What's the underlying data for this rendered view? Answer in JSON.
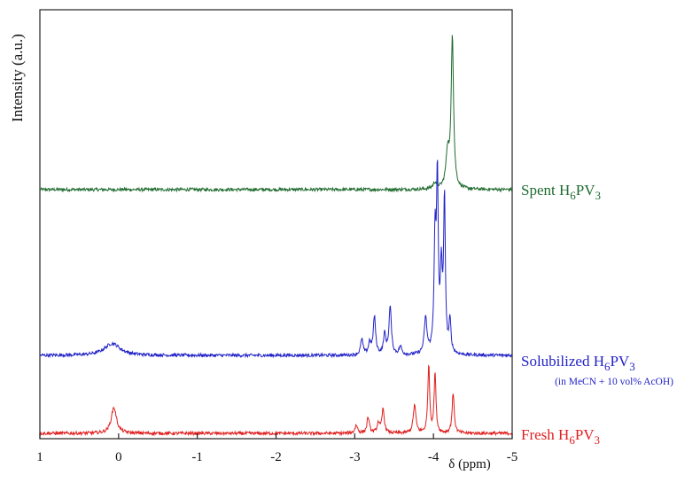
{
  "chart_data": {
    "type": "line",
    "title": "",
    "xlabel": "δ (ppm)",
    "ylabel": "Intensity (a.u.)",
    "xlim": [
      1,
      -5
    ],
    "x_reversed": true,
    "ylim": [
      0,
      1
    ],
    "y_ticks_shown": false,
    "grid": false,
    "x_ticks": [
      1,
      0,
      -1,
      -2,
      -3,
      -4,
      -5
    ],
    "x_tick_labels": [
      "1",
      "0",
      "-1",
      "-2",
      "-3",
      "-4",
      "-5"
    ],
    "series": [
      {
        "name": "Spent H6PV3",
        "label_main": "Spent H",
        "label_sub": "6",
        "label_tail": "PV",
        "label_sub2": "3",
        "color": "#1f6b2f",
        "baseline": 0.61,
        "noise": 0.004,
        "peaks": [
          {
            "ppm": -4.02,
            "height": 0.015,
            "width": 0.03
          },
          {
            "ppm": -4.18,
            "height": 0.09,
            "width": 0.025
          },
          {
            "ppm": -4.24,
            "height": 0.38,
            "width": 0.018
          }
        ]
      },
      {
        "name": "Solubilized H6PV3",
        "label_main": "Solubilized H",
        "label_sub": "6",
        "label_tail": "PV",
        "label_sub2": "3",
        "note": "(in MeCN + 10 vol% AcOH)",
        "color": "#2323c8",
        "baseline": 0.195,
        "noise": 0.004,
        "peaks": [
          {
            "ppm": 0.08,
            "height": 0.03,
            "width": 0.12
          },
          {
            "ppm": -3.09,
            "height": 0.04,
            "width": 0.018
          },
          {
            "ppm": -3.19,
            "height": 0.03,
            "width": 0.018
          },
          {
            "ppm": -3.25,
            "height": 0.095,
            "width": 0.018
          },
          {
            "ppm": -3.38,
            "height": 0.05,
            "width": 0.018
          },
          {
            "ppm": -3.45,
            "height": 0.12,
            "width": 0.018
          },
          {
            "ppm": -3.58,
            "height": 0.02,
            "width": 0.02
          },
          {
            "ppm": -3.9,
            "height": 0.09,
            "width": 0.02
          },
          {
            "ppm": -4.02,
            "height": 0.28,
            "width": 0.015
          },
          {
            "ppm": -4.05,
            "height": 0.42,
            "width": 0.013
          },
          {
            "ppm": -4.1,
            "height": 0.2,
            "width": 0.015
          },
          {
            "ppm": -4.14,
            "height": 0.38,
            "width": 0.013
          },
          {
            "ppm": -4.21,
            "height": 0.08,
            "width": 0.015
          }
        ]
      },
      {
        "name": "Fresh H6PV3",
        "label_main": "Fresh H",
        "label_sub": "6",
        "label_tail": "PV",
        "label_sub2": "3",
        "color": "#e02020",
        "baseline": 0.0,
        "noise": 0.004,
        "peaks": [
          {
            "ppm": 0.06,
            "height": 0.065,
            "width": 0.04
          },
          {
            "ppm": -3.02,
            "height": 0.02,
            "width": 0.02
          },
          {
            "ppm": -3.17,
            "height": 0.04,
            "width": 0.018
          },
          {
            "ppm": -3.3,
            "height": 0.025,
            "width": 0.018
          },
          {
            "ppm": -3.36,
            "height": 0.06,
            "width": 0.018
          },
          {
            "ppm": -3.76,
            "height": 0.07,
            "width": 0.02
          },
          {
            "ppm": -3.94,
            "height": 0.17,
            "width": 0.014
          },
          {
            "ppm": -4.02,
            "height": 0.15,
            "width": 0.014
          },
          {
            "ppm": -4.25,
            "height": 0.1,
            "width": 0.016
          }
        ]
      }
    ]
  }
}
